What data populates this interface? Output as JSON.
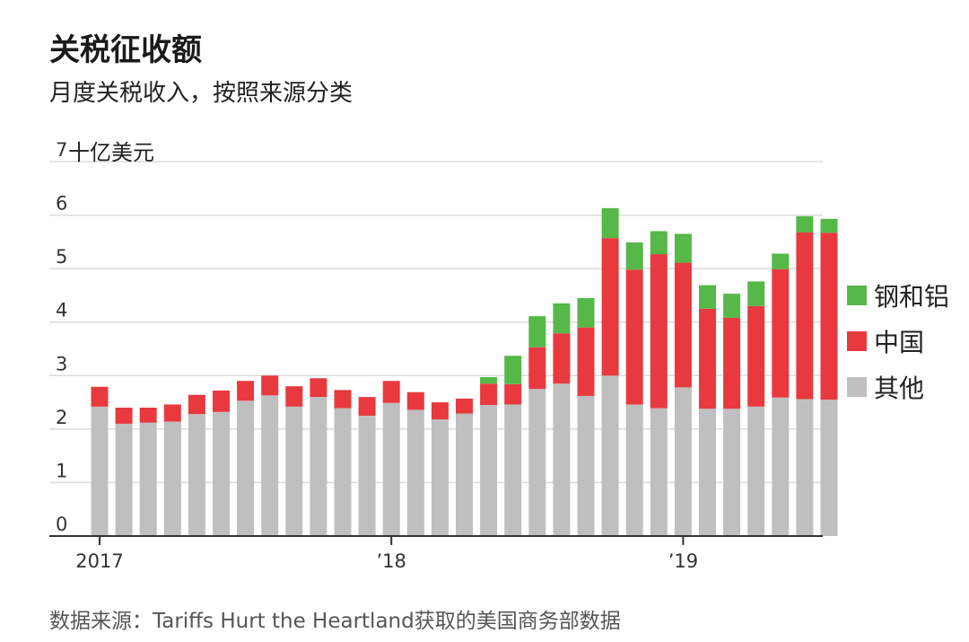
{
  "title": "关税征收额",
  "subtitle": "月度关税收入，按照来源分类",
  "source": "数据来源：Tariffs Hurt the Heartland获取的美国商务部数据",
  "chart_data": {
    "type": "bar",
    "stacked": true,
    "unit_label": "十亿美元",
    "ylim": [
      0,
      7
    ],
    "yticks": [
      "0",
      "1",
      "2",
      "3",
      "4",
      "5",
      "6",
      "7"
    ],
    "grid": true,
    "legend_position": "right",
    "x_tick_labels": [
      {
        "index": 0,
        "label": "2017"
      },
      {
        "index": 12,
        "label": "’18"
      },
      {
        "index": 24,
        "label": "’19"
      }
    ],
    "categories": [
      "2017-01",
      "2017-02",
      "2017-03",
      "2017-04",
      "2017-05",
      "2017-06",
      "2017-07",
      "2017-08",
      "2017-09",
      "2017-10",
      "2017-11",
      "2017-12",
      "2018-01",
      "2018-02",
      "2018-03",
      "2018-04",
      "2018-05",
      "2018-06",
      "2018-07",
      "2018-08",
      "2018-09",
      "2018-10",
      "2018-11",
      "2018-12",
      "2019-01",
      "2019-02",
      "2019-03",
      "2019-04",
      "2019-05",
      "2019-06",
      "2019-07"
    ],
    "series": [
      {
        "name": "其他",
        "color": "#bfbfbf",
        "values": [
          2.42,
          2.1,
          2.12,
          2.14,
          2.28,
          2.32,
          2.53,
          2.63,
          2.42,
          2.6,
          2.39,
          2.25,
          2.49,
          2.36,
          2.18,
          2.29,
          2.45,
          2.46,
          2.75,
          2.85,
          2.62,
          3.0,
          2.46,
          2.39,
          2.78,
          2.38,
          2.38,
          2.42,
          2.59,
          2.56,
          2.55
        ]
      },
      {
        "name": "中国",
        "color": "#e8393f",
        "values": [
          0.37,
          0.3,
          0.28,
          0.32,
          0.36,
          0.4,
          0.37,
          0.37,
          0.38,
          0.35,
          0.34,
          0.35,
          0.41,
          0.33,
          0.32,
          0.28,
          0.4,
          0.38,
          0.78,
          0.94,
          1.28,
          2.57,
          2.52,
          2.88,
          2.33,
          1.87,
          1.7,
          1.88,
          2.4,
          3.12,
          3.12
        ]
      },
      {
        "name": "钢和铝",
        "color": "#55b848",
        "values": [
          0,
          0,
          0,
          0,
          0,
          0,
          0,
          0,
          0,
          0,
          0,
          0,
          0,
          0,
          0,
          0,
          0.12,
          0.53,
          0.58,
          0.56,
          0.55,
          0.56,
          0.51,
          0.43,
          0.54,
          0.44,
          0.45,
          0.46,
          0.29,
          0.3,
          0.26
        ]
      }
    ]
  }
}
